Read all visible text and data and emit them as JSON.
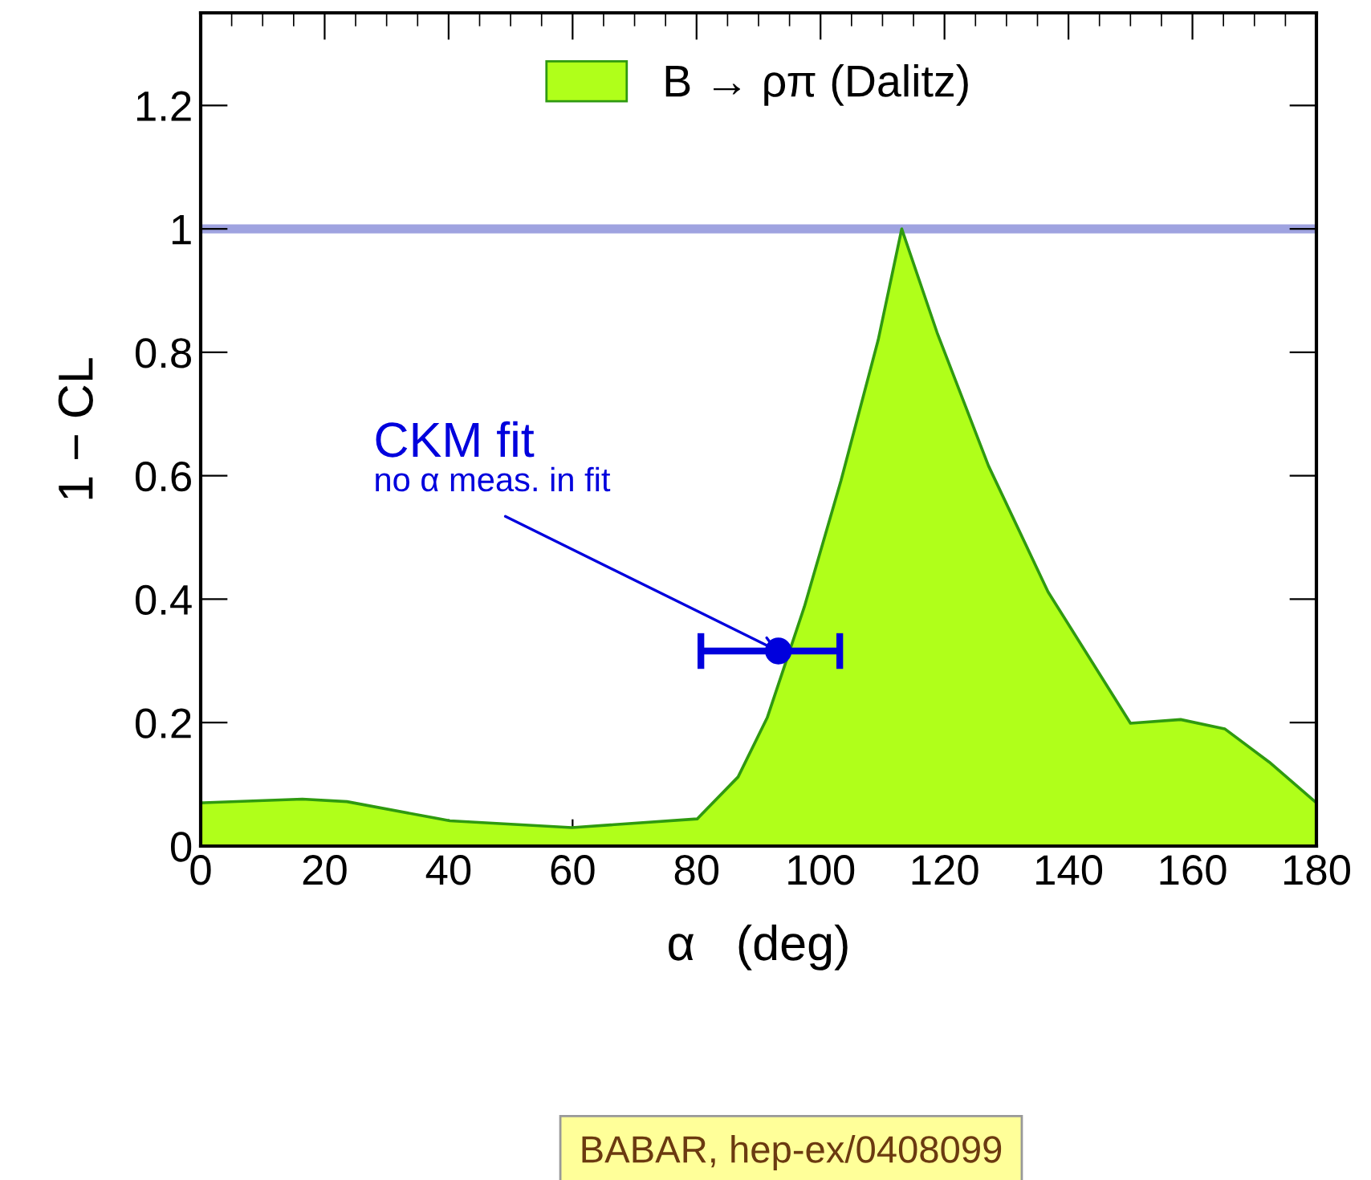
{
  "chart_data": {
    "type": "area",
    "xlabel": "α   (deg)",
    "ylabel": "1 − CL",
    "xlim": [
      0,
      180
    ],
    "xticks": [
      0,
      20,
      40,
      60,
      80,
      100,
      120,
      140,
      160,
      180
    ],
    "ylim": [
      0,
      1.35
    ],
    "yticks": [
      0,
      0.2,
      0.4,
      0.6,
      0.8,
      1,
      1.2
    ],
    "series": [
      {
        "name": "B → ρπ (Dalitz)",
        "type": "area",
        "color": "#b0ff1a",
        "x": [
          0,
          16.4,
          23.6,
          40.2,
          59.9,
          80.1,
          86.7,
          91.4,
          97.4,
          103.3,
          109.3,
          113.1,
          118.8,
          127.1,
          136.7,
          150,
          158.1,
          165.2,
          172.4,
          180
        ],
        "values": [
          0.07,
          0.076,
          0.072,
          0.041,
          0.03,
          0.044,
          0.112,
          0.208,
          0.388,
          0.592,
          0.82,
          1.0,
          0.832,
          0.616,
          0.412,
          0.199,
          0.205,
          0.19,
          0.136,
          0.07
        ]
      },
      {
        "type": "scatter",
        "color": "#0000dd",
        "x": [
          93.2
        ],
        "values": [
          0.316
        ],
        "xerrors": [
          [
            80.7,
            103.1
          ]
        ],
        "marker": "circle"
      }
    ],
    "ref_lines": [
      {
        "axis": "y",
        "value": 1,
        "color": "#9fa3e0"
      }
    ],
    "annotations": [
      {
        "text": "CKM fit"
      },
      {
        "text": "no α meas. in fit",
        "x": 93.2,
        "y": 0.316
      },
      "BABAR, hep-ex/0408099"
    ],
    "legend": "top",
    "grid": false
  }
}
